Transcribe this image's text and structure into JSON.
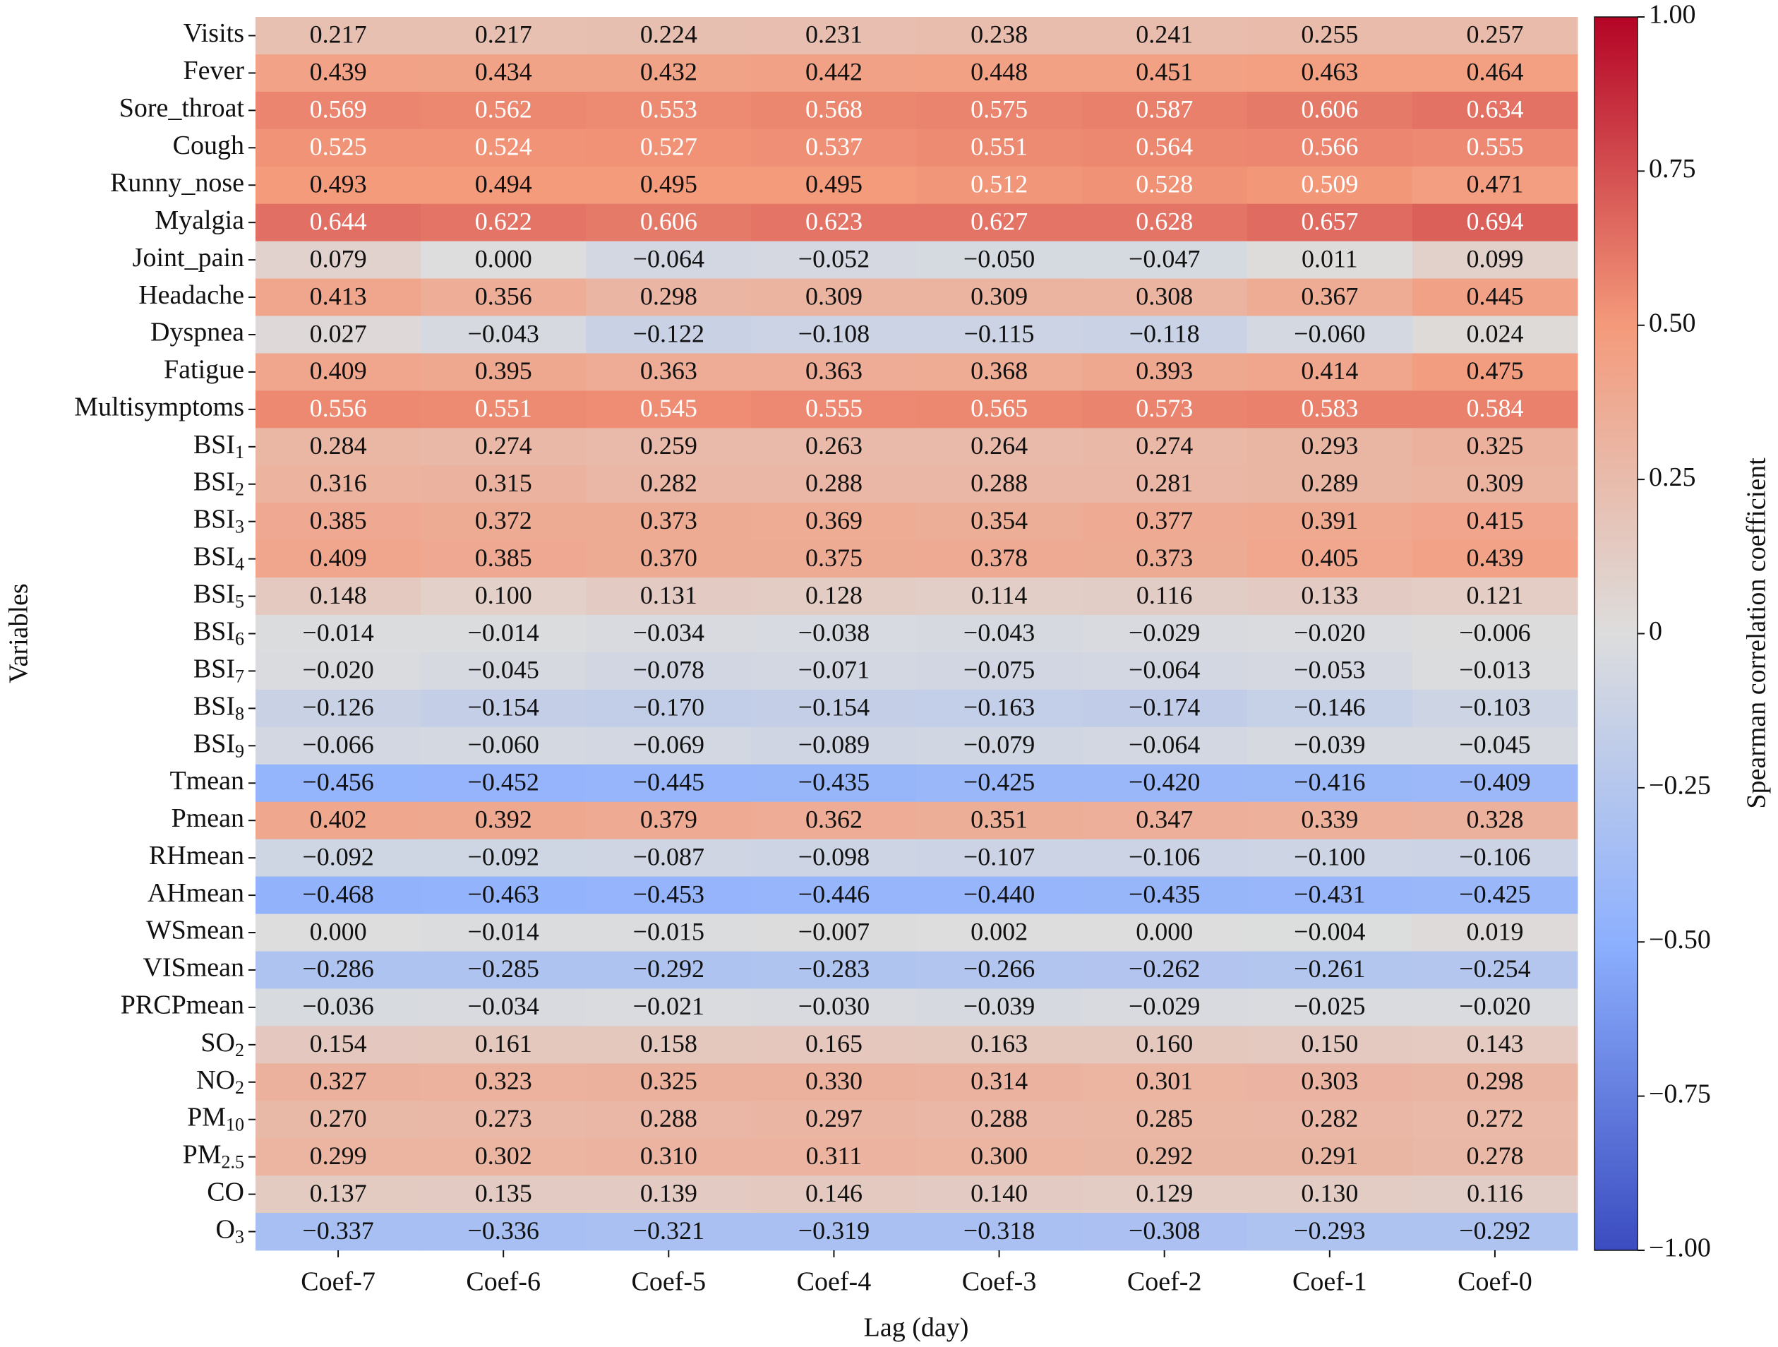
{
  "chart_data": {
    "type": "heatmap",
    "xlabel": "Lag (day)",
    "ylabel": "Variables",
    "colorbar_label": "Spearman correlation coefficient",
    "x_categories": [
      "Coef-7",
      "Coef-6",
      "Coef-5",
      "Coef-4",
      "Coef-3",
      "Coef-2",
      "Coef-1",
      "Coef-0"
    ],
    "y_categories": [
      "Visits",
      "Fever",
      "Sore_throat",
      "Cough",
      "Runny_nose",
      "Myalgia",
      "Joint_pain",
      "Headache",
      "Dyspnea",
      "Fatigue",
      "Multisymptoms",
      "BSI1",
      "BSI2",
      "BSI3",
      "BSI4",
      "BSI5",
      "BSI6",
      "BSI7",
      "BSI8",
      "BSI9",
      "Tmean",
      "Pmean",
      "RHmean",
      "AHmean",
      "WSmean",
      "VISmean",
      "PRCPmean",
      "SO2",
      "NO2",
      "PM10",
      "PM2.5",
      "CO",
      "O3"
    ],
    "values": [
      [
        0.217,
        0.217,
        0.224,
        0.231,
        0.238,
        0.241,
        0.255,
        0.257
      ],
      [
        0.439,
        0.434,
        0.432,
        0.442,
        0.448,
        0.451,
        0.463,
        0.464
      ],
      [
        0.569,
        0.562,
        0.553,
        0.568,
        0.575,
        0.587,
        0.606,
        0.634
      ],
      [
        0.525,
        0.524,
        0.527,
        0.537,
        0.551,
        0.564,
        0.566,
        0.555
      ],
      [
        0.493,
        0.494,
        0.495,
        0.495,
        0.512,
        0.528,
        0.509,
        0.471
      ],
      [
        0.644,
        0.622,
        0.606,
        0.623,
        0.627,
        0.628,
        0.657,
        0.694
      ],
      [
        0.079,
        0,
        -0.064,
        -0.052,
        -0.05,
        -0.047,
        0.011,
        0.099
      ],
      [
        0.413,
        0.356,
        0.298,
        0.309,
        0.309,
        0.308,
        0.367,
        0.445
      ],
      [
        0.027,
        -0.043,
        -0.122,
        -0.108,
        -0.115,
        -0.118,
        -0.06,
        0.024
      ],
      [
        0.409,
        0.395,
        0.363,
        0.363,
        0.368,
        0.393,
        0.414,
        0.475
      ],
      [
        0.556,
        0.551,
        0.545,
        0.555,
        0.565,
        0.573,
        0.583,
        0.584
      ],
      [
        0.284,
        0.274,
        0.259,
        0.263,
        0.264,
        0.274,
        0.293,
        0.325
      ],
      [
        0.316,
        0.315,
        0.282,
        0.288,
        0.288,
        0.281,
        0.289,
        0.309
      ],
      [
        0.385,
        0.372,
        0.373,
        0.369,
        0.354,
        0.377,
        0.391,
        0.415
      ],
      [
        0.409,
        0.385,
        0.37,
        0.375,
        0.378,
        0.373,
        0.405,
        0.439
      ],
      [
        0.148,
        0.1,
        0.131,
        0.128,
        0.114,
        0.116,
        0.133,
        0.121
      ],
      [
        -0.014,
        -0.014,
        -0.034,
        -0.038,
        -0.043,
        -0.029,
        -0.02,
        -0.006
      ],
      [
        -0.02,
        -0.045,
        -0.078,
        -0.071,
        -0.075,
        -0.064,
        -0.053,
        -0.013
      ],
      [
        -0.126,
        -0.154,
        -0.17,
        -0.154,
        -0.163,
        -0.174,
        -0.146,
        -0.103
      ],
      [
        -0.066,
        -0.06,
        -0.069,
        -0.089,
        -0.079,
        -0.064,
        -0.039,
        -0.045
      ],
      [
        -0.456,
        -0.452,
        -0.445,
        -0.435,
        -0.425,
        -0.42,
        -0.416,
        -0.409
      ],
      [
        0.402,
        0.392,
        0.379,
        0.362,
        0.351,
        0.347,
        0.339,
        0.328
      ],
      [
        -0.092,
        -0.092,
        -0.087,
        -0.098,
        -0.107,
        -0.106,
        -0.1,
        -0.106
      ],
      [
        -0.468,
        -0.463,
        -0.453,
        -0.446,
        -0.44,
        -0.435,
        -0.431,
        -0.425
      ],
      [
        0,
        -0.014,
        -0.015,
        -0.007,
        0.002,
        0,
        -0.004,
        0.019
      ],
      [
        -0.286,
        -0.285,
        -0.292,
        -0.283,
        -0.266,
        -0.262,
        -0.261,
        -0.254
      ],
      [
        -0.036,
        -0.034,
        -0.021,
        -0.03,
        -0.039,
        -0.029,
        -0.025,
        -0.02
      ],
      [
        0.154,
        0.161,
        0.158,
        0.165,
        0.163,
        0.16,
        0.15,
        0.143
      ],
      [
        0.327,
        0.323,
        0.325,
        0.33,
        0.314,
        0.301,
        0.303,
        0.298
      ],
      [
        0.27,
        0.273,
        0.288,
        0.297,
        0.288,
        0.285,
        0.282,
        0.272
      ],
      [
        0.299,
        0.302,
        0.31,
        0.311,
        0.3,
        0.292,
        0.291,
        0.278
      ],
      [
        0.137,
        0.135,
        0.139,
        0.146,
        0.14,
        0.129,
        0.13,
        0.116
      ],
      [
        -0.337,
        -0.336,
        -0.321,
        -0.319,
        -0.318,
        -0.308,
        -0.293,
        -0.292
      ]
    ],
    "value_labels": [
      [
        "0.217",
        "0.217",
        "0.224",
        "0.231",
        "0.238",
        "0.241",
        "0.255",
        "0.257"
      ],
      [
        "0.439",
        "0.434",
        "0.432",
        "0.442",
        "0.448",
        "0.451",
        "0.463",
        "0.464"
      ],
      [
        "0.569",
        "0.562",
        "0.553",
        "0.568",
        "0.575",
        "0.587",
        "0.606",
        "0.634"
      ],
      [
        "0.525",
        "0.524",
        "0.527",
        "0.537",
        "0.551",
        "0.564",
        "0.566",
        "0.555"
      ],
      [
        "0.493",
        "0.494",
        "0.495",
        "0.495",
        "0.512",
        "0.528",
        "0.509",
        "0.471"
      ],
      [
        "0.644",
        "0.622",
        "0.606",
        "0.623",
        "0.627",
        "0.628",
        "0.657",
        "0.694"
      ],
      [
        "0.079",
        "0.000",
        "−0.064",
        "−0.052",
        "−0.050",
        "−0.047",
        "0.011",
        "0.099"
      ],
      [
        "0.413",
        "0.356",
        "0.298",
        "0.309",
        "0.309",
        "0.308",
        "0.367",
        "0.445"
      ],
      [
        "0.027",
        "−0.043",
        "−0.122",
        "−0.108",
        "−0.115",
        "−0.118",
        "−0.060",
        "0.024"
      ],
      [
        "0.409",
        "0.395",
        "0.363",
        "0.363",
        "0.368",
        "0.393",
        "0.414",
        "0.475"
      ],
      [
        "0.556",
        "0.551",
        "0.545",
        "0.555",
        "0.565",
        "0.573",
        "0.583",
        "0.584"
      ],
      [
        "0.284",
        "0.274",
        "0.259",
        "0.263",
        "0.264",
        "0.274",
        "0.293",
        "0.325"
      ],
      [
        "0.316",
        "0.315",
        "0.282",
        "0.288",
        "0.288",
        "0.281",
        "0.289",
        "0.309"
      ],
      [
        "0.385",
        "0.372",
        "0.373",
        "0.369",
        "0.354",
        "0.377",
        "0.391",
        "0.415"
      ],
      [
        "0.409",
        "0.385",
        "0.370",
        "0.375",
        "0.378",
        "0.373",
        "0.405",
        "0.439"
      ],
      [
        "0.148",
        "0.100",
        "0.131",
        "0.128",
        "0.114",
        "0.116",
        "0.133",
        "0.121"
      ],
      [
        "−0.014",
        "−0.014",
        "−0.034",
        "−0.038",
        "−0.043",
        "−0.029",
        "−0.020",
        "−0.006"
      ],
      [
        "−0.020",
        "−0.045",
        "−0.078",
        "−0.071",
        "−0.075",
        "−0.064",
        "−0.053",
        "−0.013"
      ],
      [
        "−0.126",
        "−0.154",
        "−0.170",
        "−0.154",
        "−0.163",
        "−0.174",
        "−0.146",
        "−0.103"
      ],
      [
        "−0.066",
        "−0.060",
        "−0.069",
        "−0.089",
        "−0.079",
        "−0.064",
        "−0.039",
        "−0.045"
      ],
      [
        "−0.456",
        "−0.452",
        "−0.445",
        "−0.435",
        "−0.425",
        "−0.420",
        "−0.416",
        "−0.409"
      ],
      [
        "0.402",
        "0.392",
        "0.379",
        "0.362",
        "0.351",
        "0.347",
        "0.339",
        "0.328"
      ],
      [
        "−0.092",
        "−0.092",
        "−0.087",
        "−0.098",
        "−0.107",
        "−0.106",
        "−0.100",
        "−0.106"
      ],
      [
        "−0.468",
        "−0.463",
        "−0.453",
        "−0.446",
        "−0.440",
        "−0.435",
        "−0.431",
        "−0.425"
      ],
      [
        "0.000",
        "−0.014",
        "−0.015",
        "−0.007",
        "0.002",
        "0.000",
        "−0.004",
        "0.019"
      ],
      [
        "−0.286",
        "−0.285",
        "−0.292",
        "−0.283",
        "−0.266",
        "−0.262",
        "−0.261",
        "−0.254"
      ],
      [
        "−0.036",
        "−0.034",
        "−0.021",
        "−0.030",
        "−0.039",
        "−0.029",
        "−0.025",
        "−0.020"
      ],
      [
        "0.154",
        "0.161",
        "0.158",
        "0.165",
        "0.163",
        "0.160",
        "0.150",
        "0.143"
      ],
      [
        "0.327",
        "0.323",
        "0.325",
        "0.330",
        "0.314",
        "0.301",
        "0.303",
        "0.298"
      ],
      [
        "0.270",
        "0.273",
        "0.288",
        "0.297",
        "0.288",
        "0.285",
        "0.282",
        "0.272"
      ],
      [
        "0.299",
        "0.302",
        "0.310",
        "0.311",
        "0.300",
        "0.292",
        "0.291",
        "0.278"
      ],
      [
        "0.137",
        "0.135",
        "0.139",
        "0.146",
        "0.140",
        "0.129",
        "0.130",
        "0.116"
      ],
      [
        "−0.337",
        "−0.336",
        "−0.321",
        "−0.319",
        "−0.318",
        "−0.308",
        "−0.293",
        "−0.292"
      ]
    ],
    "colormap": [
      "#3b4cc0",
      "#8db0fe",
      "#dddddd",
      "#f49a7b",
      "#b40426"
    ],
    "clim": [
      -1,
      1
    ],
    "cticks": [
      {
        "value": 1,
        "label": "1.00"
      },
      0.75,
      {
        "value": 0.5,
        "label": "0.50"
      },
      0.25,
      0,
      {
        "value": -0.25,
        "label": "−0.25"
      },
      {
        "value": -0.5,
        "label": "−0.50"
      },
      {
        "value": -0.75,
        "label": "−0.75"
      },
      {
        "value": -1,
        "label": "−1.00"
      }
    ]
  }
}
